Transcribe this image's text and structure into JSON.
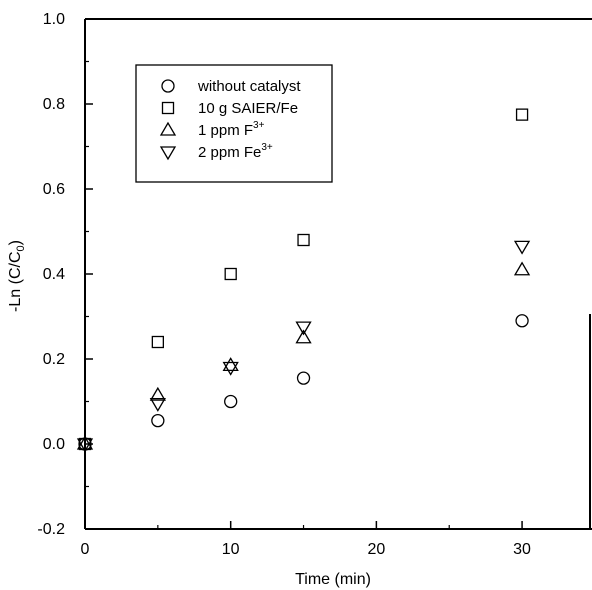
{
  "chart_data": {
    "type": "scatter",
    "xlabel": "Time (min)",
    "ylabel": "-Ln (C/C",
    "ylabel_sub": "0",
    "ylabel_close": ")",
    "xlim": [
      0,
      35
    ],
    "ylim": [
      -0.2,
      1.0
    ],
    "xticks": [
      0,
      10,
      20,
      30
    ],
    "xtick_labels": [
      "0",
      "10",
      "20",
      "30"
    ],
    "yticks": [
      -0.2,
      0.0,
      0.2,
      0.4,
      0.6,
      0.8,
      1.0
    ],
    "ytick_labels": [
      "-0.2",
      "0.0",
      "0.2",
      "0.4",
      "0.6",
      "0.8",
      "1.0"
    ],
    "legend_position": "top-left",
    "series": [
      {
        "name": "without catalyst",
        "label_main": "without catalyst",
        "label_sup": "",
        "marker": "circle",
        "x": [
          0,
          5,
          10,
          15,
          30
        ],
        "y": [
          0.0,
          0.055,
          0.1,
          0.155,
          0.29
        ]
      },
      {
        "name": "10 g SAIER/Fe",
        "label_main": "10 g SAIER/Fe",
        "label_sup": "",
        "marker": "square",
        "x": [
          0,
          5,
          10,
          15,
          30
        ],
        "y": [
          0.0,
          0.24,
          0.4,
          0.48,
          0.775
        ]
      },
      {
        "name": "1 ppm F3+",
        "label_main": "1 ppm F",
        "label_sup": "3+",
        "marker": "triangle-up",
        "x": [
          0,
          5,
          10,
          15,
          30
        ],
        "y": [
          0.0,
          0.115,
          0.185,
          0.25,
          0.41
        ]
      },
      {
        "name": "2 ppm Fe3+",
        "label_main": "2 ppm Fe",
        "label_sup": "3+",
        "marker": "triangle-down",
        "x": [
          0,
          5,
          10,
          15,
          30
        ],
        "y": [
          0.0,
          0.095,
          0.18,
          0.275,
          0.465
        ]
      }
    ]
  }
}
